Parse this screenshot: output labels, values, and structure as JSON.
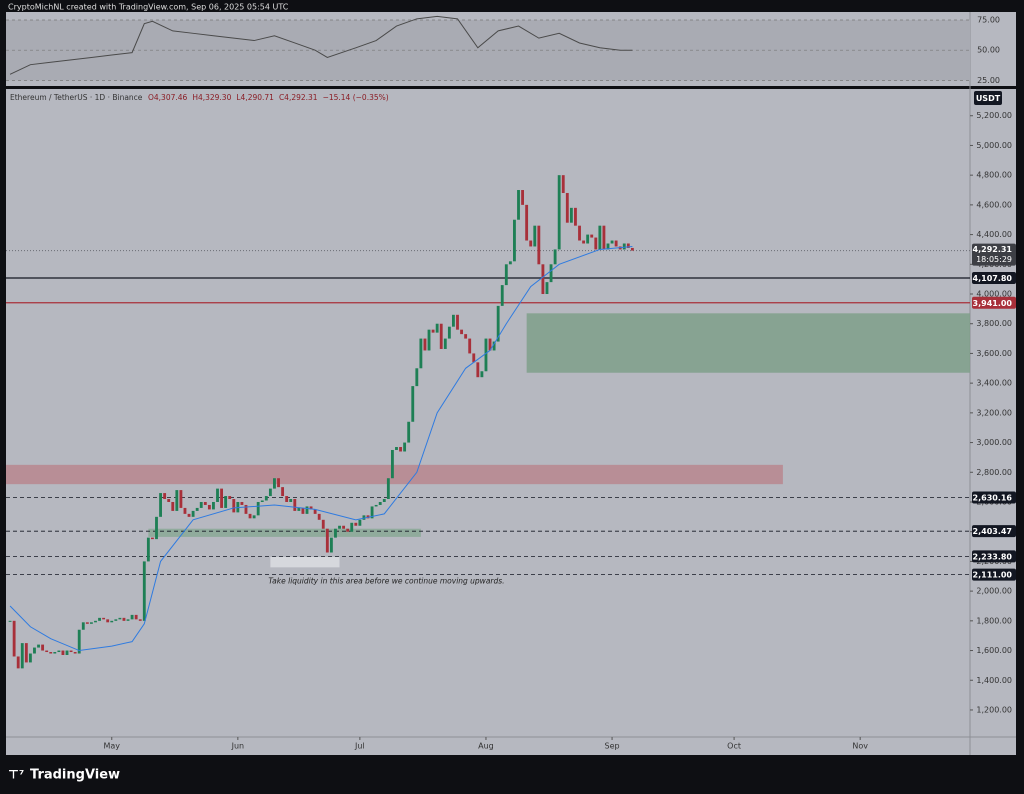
{
  "header": {
    "author": "CryptoMichNL created with TradingView.com, Sep 06, 2025 05:54 UTC",
    "brand": "TradingView"
  },
  "chart_data": {
    "type": "candlestick",
    "symbol": "Ethereum / TetherUS · 1D · Binance",
    "ohlc": [
      "O4,307.46",
      "H4,329.30",
      "L4,290.71",
      "C4,292.31",
      "−15.14 (−0.35%)"
    ],
    "currency": "USDT",
    "up_color": "#1e7f55",
    "down_color": "#a8303a",
    "ma_color": "#2f7be0",
    "xlim": [
      -1,
      236
    ],
    "xticks": [
      {
        "value": 25,
        "label": "May"
      },
      {
        "value": 56,
        "label": "Jun"
      },
      {
        "value": 86,
        "label": "Jul"
      },
      {
        "value": 117,
        "label": "Aug"
      },
      {
        "value": 148,
        "label": "Sep"
      },
      {
        "value": 178,
        "label": "Oct"
      },
      {
        "value": 209,
        "label": "Nov"
      }
    ],
    "ylim": [
      1018,
      5380
    ],
    "yticks": [
      {
        "value": 1200,
        "label": "1,200.00"
      },
      {
        "value": 1400,
        "label": "1,400.00"
      },
      {
        "value": 1600,
        "label": "1,600.00"
      },
      {
        "value": 1800,
        "label": "1,800.00"
      },
      {
        "value": 2000,
        "label": "2,000.00"
      },
      {
        "value": 2200,
        "label": "2,200.00"
      },
      {
        "value": 2400,
        "label": "2,400.00"
      },
      {
        "value": 2600,
        "label": "2,600.00"
      },
      {
        "value": 2800,
        "label": "2,800.00"
      },
      {
        "value": 3000,
        "label": "3,000.00"
      },
      {
        "value": 3200,
        "label": "3,200.00"
      },
      {
        "value": 3400,
        "label": "3,400.00"
      },
      {
        "value": 3600,
        "label": "3,600.00"
      },
      {
        "value": 3800,
        "label": "3,800.00"
      },
      {
        "value": 4000,
        "label": "4,000.00"
      },
      {
        "value": 4200,
        "label": "4,200.00"
      },
      {
        "value": 4400,
        "label": "4,400.00"
      },
      {
        "value": 4600,
        "label": "4,600.00"
      },
      {
        "value": 4800,
        "label": "4,800.00"
      },
      {
        "value": 5000,
        "label": "5,000.00"
      },
      {
        "value": 5200,
        "label": "5,200.00"
      }
    ],
    "close": [
      1800,
      1560,
      1480,
      1650,
      1520,
      1580,
      1620,
      1640,
      1600,
      1590,
      1580,
      1590,
      1600,
      1570,
      1600,
      1590,
      1580,
      1740,
      1790,
      1780,
      1790,
      1800,
      1820,
      1810,
      1790,
      1800,
      1810,
      1820,
      1800,
      1810,
      1840,
      1810,
      1800,
      2200,
      2360,
      2350,
      2500,
      2660,
      2620,
      2600,
      2540,
      2680,
      2560,
      2520,
      2500,
      2540,
      2560,
      2600,
      2580,
      2550,
      2600,
      2690,
      2560,
      2640,
      2620,
      2530,
      2600,
      2580,
      2520,
      2490,
      2510,
      2600,
      2610,
      2640,
      2690,
      2760,
      2700,
      2640,
      2600,
      2620,
      2540,
      2560,
      2520,
      2570,
      2550,
      2520,
      2480,
      2420,
      2260,
      2360,
      2420,
      2440,
      2420,
      2400,
      2460,
      2440,
      2480,
      2510,
      2490,
      2570,
      2580,
      2600,
      2620,
      2760,
      2950,
      2970,
      2940,
      3000,
      3140,
      3380,
      3500,
      3700,
      3620,
      3760,
      3740,
      3800,
      3630,
      3700,
      3780,
      3860,
      3760,
      3730,
      3700,
      3600,
      3540,
      3440,
      3480,
      3700,
      3620,
      3680,
      3920,
      4060,
      4200,
      4220,
      4500,
      4700,
      4600,
      4360,
      4320,
      4460,
      4200,
      4000,
      4080,
      4200,
      4300,
      4800,
      4680,
      4480,
      4580,
      4460,
      4360,
      4340,
      4400,
      4380,
      4300,
      4460,
      4300,
      4340,
      4360,
      4320,
      4300,
      4340,
      4310,
      4292.31
    ],
    "ma": {
      "x": [
        0,
        5,
        10,
        17,
        25,
        30,
        33,
        37,
        45,
        55,
        65,
        75,
        85,
        92,
        100,
        105,
        112,
        118,
        122,
        128,
        135,
        145,
        153
      ],
      "values": [
        1900,
        1760,
        1680,
        1600,
        1630,
        1660,
        1780,
        2200,
        2480,
        2560,
        2580,
        2550,
        2480,
        2520,
        2800,
        3200,
        3500,
        3620,
        3800,
        4050,
        4200,
        4300,
        4320
      ]
    },
    "last": {
      "value": 4292.31,
      "label": "4,292.31",
      "timer": "18:05:29"
    },
    "levels": [
      {
        "value": 4107.8,
        "label": "4,107.80",
        "color": "#131722",
        "style": "solid"
      },
      {
        "value": 3941,
        "label": "3,941.00",
        "color": "#a8303a",
        "style": "solid"
      },
      {
        "value": 2630.16,
        "label": "2,630.16",
        "color": "#131722",
        "style": "dashed"
      },
      {
        "value": 2403.47,
        "label": "2,403.47",
        "color": "#131722",
        "style": "dashed"
      },
      {
        "value": 2233.8,
        "label": "2,233.80",
        "color": "#131722",
        "style": "dashed"
      },
      {
        "value": 2111,
        "label": "2,111.00",
        "color": "#131722",
        "style": "dashed"
      }
    ],
    "zones": [
      {
        "x": [
          127,
          236
        ],
        "y": [
          3470,
          3870
        ],
        "color": "#7f9f8a"
      },
      {
        "x": [
          -1,
          190
        ],
        "y": [
          2720,
          2850
        ],
        "color": "#b9868e"
      },
      {
        "x": [
          34,
          101
        ],
        "y": [
          2365,
          2420
        ],
        "color": "#8aa895"
      },
      {
        "x": [
          64,
          81
        ],
        "y": [
          2160,
          2230
        ],
        "color": "#dcdde2"
      }
    ],
    "annotation": "Take liquidity in this area before we continue moving upwards.",
    "rsi": {
      "ylim": [
        22,
        80
      ],
      "yticks": [
        {
          "value": 75,
          "label": "75.00"
        },
        {
          "value": 50,
          "label": "50.00"
        },
        {
          "value": 25,
          "label": "25.00"
        }
      ],
      "x": [
        0,
        5,
        10,
        15,
        20,
        25,
        30,
        33,
        35,
        40,
        45,
        50,
        55,
        60,
        65,
        70,
        75,
        78,
        85,
        90,
        95,
        100,
        105,
        110,
        115,
        120,
        125,
        130,
        135,
        140,
        145,
        150,
        153
      ],
      "values": [
        30,
        38,
        40,
        42,
        44,
        46,
        48,
        72,
        74,
        66,
        64,
        62,
        60,
        58,
        62,
        56,
        50,
        44,
        52,
        58,
        70,
        76,
        78,
        76,
        52,
        66,
        70,
        60,
        64,
        56,
        52,
        50,
        50
      ],
      "color": "#4a4a4a"
    }
  }
}
